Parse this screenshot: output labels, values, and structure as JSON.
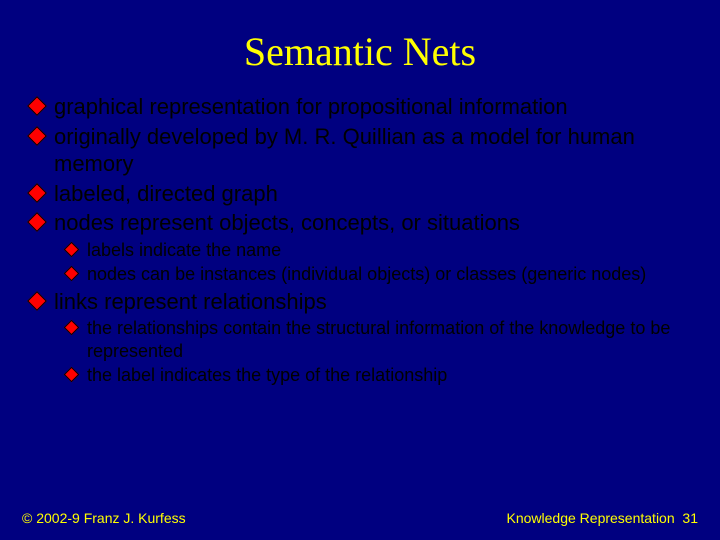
{
  "slide": {
    "title": "Semantic Nets",
    "background_color": "#000080",
    "title_color": "#ffff00",
    "body_text_color": "#000000",
    "bullet_fill": "#ff0000",
    "bullet_border": "#000000",
    "title_font": "Times New Roman",
    "body_font": "Arial",
    "title_fontsize_pt": 40,
    "l1_fontsize_pt": 22,
    "l2_fontsize_pt": 18,
    "footer_fontsize_pt": 14,
    "bullets": {
      "b1": "graphical representation for propositional information",
      "b2": "originally developed by M. R. Quillian as a model for human memory",
      "b3": "labeled, directed graph",
      "b4": "nodes represent objects, concepts, or situations",
      "b4_1": "labels indicate the name",
      "b4_2": "nodes can be instances (individual objects) or classes (generic nodes)",
      "b5": "links represent relationships",
      "b5_1": "the relationships contain the structural information of the knowledge to be represented",
      "b5_2": "the label indicates the type of the relationship"
    },
    "footer": {
      "left": "© 2002-9 Franz J. Kurfess",
      "right_label": "Knowledge Representation",
      "right_number": "31"
    }
  }
}
